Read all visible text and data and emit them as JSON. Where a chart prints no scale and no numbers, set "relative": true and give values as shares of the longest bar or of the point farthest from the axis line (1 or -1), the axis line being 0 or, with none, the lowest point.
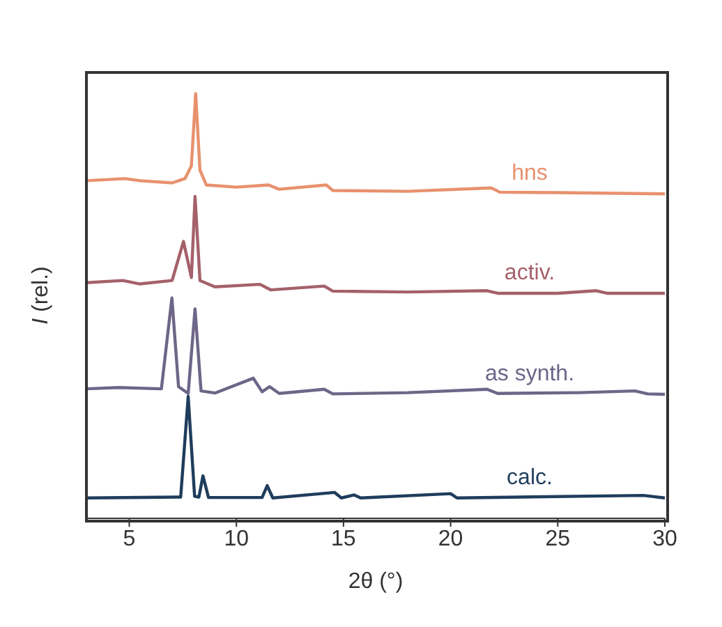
{
  "chart_data": {
    "type": "line",
    "xlabel": "2θ (°)",
    "ylabel": "I (rel.)",
    "relative": true,
    "xlim": [
      3,
      30
    ],
    "xticks": [
      5,
      10,
      15,
      20,
      25,
      30
    ],
    "legend": false,
    "marker": "none",
    "line_style": "solid",
    "series": [
      {
        "name": "hns",
        "color": "#e8916e",
        "x": [
          3,
          4.8,
          5.5,
          7,
          7.6,
          7.9,
          8.1,
          8.3,
          8.6,
          10,
          11.5,
          12,
          14.2,
          14.5,
          18,
          21.9,
          22.3,
          25,
          30
        ],
        "values": [
          0.795,
          0.8,
          0.795,
          0.79,
          0.8,
          0.83,
          1,
          0.82,
          0.785,
          0.78,
          0.785,
          0.775,
          0.785,
          0.772,
          0.77,
          0.778,
          0.768,
          0.767,
          0.764
        ]
      },
      {
        "name": "activ.",
        "color": "#a5616a",
        "x": [
          3,
          4.7,
          5.5,
          7,
          7.53,
          7.9,
          8.07,
          8.3,
          9,
          11.1,
          11.6,
          14.1,
          14.5,
          18,
          21.7,
          22.2,
          25,
          26.8,
          27.3,
          30
        ],
        "values": [
          0.555,
          0.56,
          0.552,
          0.56,
          0.652,
          0.567,
          0.758,
          0.56,
          0.545,
          0.551,
          0.538,
          0.547,
          0.535,
          0.533,
          0.536,
          0.53,
          0.53,
          0.536,
          0.53,
          0.53
        ]
      },
      {
        "name": "as synth.",
        "color": "#6e6688",
        "x": [
          3,
          4.5,
          6.5,
          6.99,
          7.3,
          7.75,
          8.07,
          8.35,
          9,
          10.79,
          11.2,
          11.55,
          12,
          14.1,
          14.5,
          18,
          21.7,
          22.2,
          26,
          28.6,
          29.2,
          30
        ],
        "values": [
          0.305,
          0.308,
          0.305,
          0.519,
          0.31,
          0.294,
          0.493,
          0.3,
          0.295,
          0.33,
          0.298,
          0.31,
          0.294,
          0.304,
          0.293,
          0.296,
          0.304,
          0.294,
          0.296,
          0.3,
          0.293,
          0.292
        ]
      },
      {
        "name": "calc.",
        "color": "#1f3d5c",
        "x": [
          3,
          7.4,
          7.75,
          8.05,
          8.25,
          8.44,
          8.7,
          11.2,
          11.44,
          11.7,
          14.58,
          14.9,
          15.5,
          15.8,
          20,
          20.3,
          29,
          30
        ],
        "values": [
          0.048,
          0.05,
          0.287,
          0.052,
          0.05,
          0.1,
          0.049,
          0.049,
          0.077,
          0.048,
          0.061,
          0.048,
          0.055,
          0.048,
          0.058,
          0.048,
          0.054,
          0.048
        ]
      }
    ]
  }
}
